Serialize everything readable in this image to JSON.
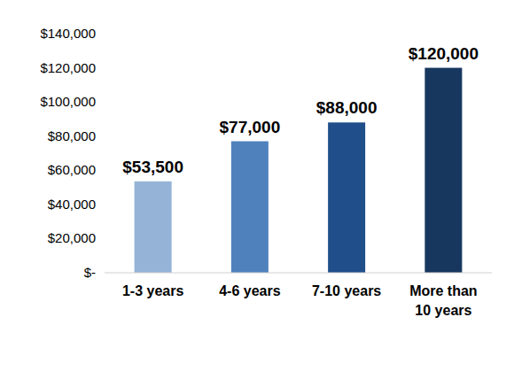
{
  "chart_data": {
    "type": "bar",
    "categories": [
      "1-3 years",
      "4-6 years",
      "7-10 years",
      "More than 10 years"
    ],
    "values": [
      53500,
      77000,
      88000,
      120000
    ],
    "value_labels": [
      "$53,500",
      "$77,000",
      "$88,000",
      "$120,000"
    ],
    "colors": [
      "#95b3d7",
      "#4f81bd",
      "#1f4e8a",
      "#17375e"
    ],
    "ylim": [
      0,
      140000
    ],
    "yticks": [
      {
        "value": 0,
        "label": "$-"
      },
      {
        "value": 20000,
        "label": "$20,000"
      },
      {
        "value": 40000,
        "label": "$40,000"
      },
      {
        "value": 60000,
        "label": "$60,000"
      },
      {
        "value": 80000,
        "label": "$80,000"
      },
      {
        "value": 100000,
        "label": "$100,000"
      },
      {
        "value": 120000,
        "label": "$120,000"
      },
      {
        "value": 140000,
        "label": "$140,000"
      }
    ],
    "grid": false,
    "data_labels": true
  }
}
